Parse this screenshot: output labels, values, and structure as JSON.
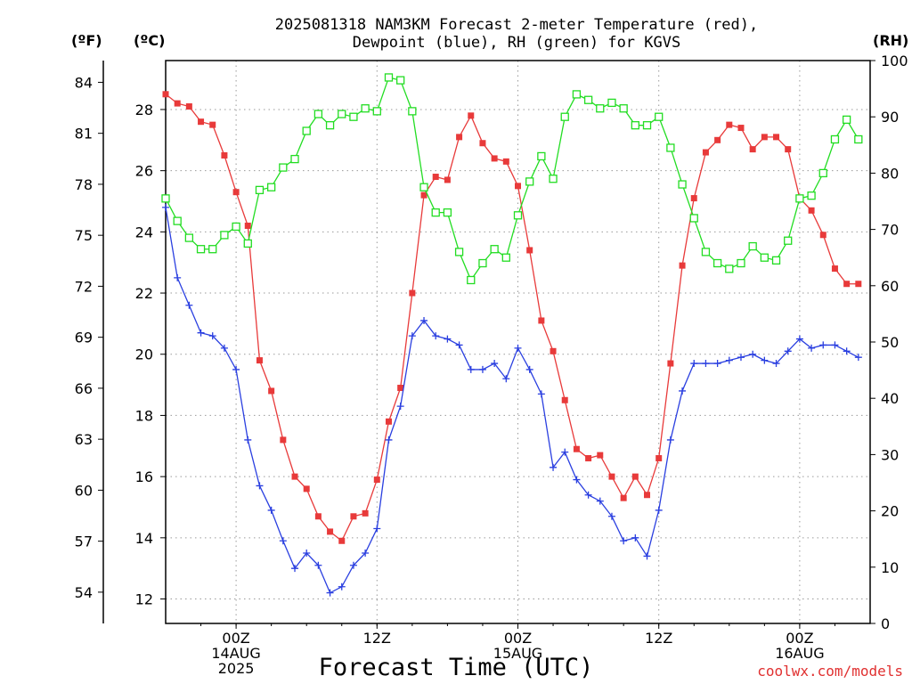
{
  "chart_data": {
    "type": "line",
    "title_lines": [
      "2025081318 NAM3KM Forecast 2-meter Temperature (red),",
      "Dewpoint (blue), RH (green) for KGVS"
    ],
    "xlabel": "Forecast Time (UTC)",
    "credit": "coolwx.com/models",
    "units": {
      "fahrenheit": "(ºF)",
      "celsius": "(ºC)",
      "rh": "(RH)"
    },
    "x_hours_from_start": {
      "range": [
        0,
        60
      ]
    },
    "x_ticks": [
      {
        "hour": 6,
        "lines": [
          "00Z",
          "14AUG",
          "2025"
        ]
      },
      {
        "hour": 18,
        "lines": [
          "12Z"
        ]
      },
      {
        "hour": 30,
        "lines": [
          "00Z",
          "15AUG"
        ]
      },
      {
        "hour": 42,
        "lines": [
          "12Z"
        ]
      },
      {
        "hour": 54,
        "lines": [
          "00Z",
          "16AUG"
        ]
      }
    ],
    "celsius_axis": {
      "range": [
        11.2,
        29.6
      ],
      "ticks": [
        12,
        14,
        16,
        18,
        20,
        22,
        24,
        26,
        28
      ]
    },
    "fahrenheit_ticks": [
      54,
      57,
      60,
      63,
      66,
      69,
      72,
      75,
      78,
      81,
      84
    ],
    "rh_axis": {
      "range": [
        0,
        100
      ],
      "ticks": [
        0,
        10,
        20,
        30,
        40,
        50,
        60,
        70,
        80,
        90,
        100
      ]
    },
    "colors": {
      "temperature": "#e83a3a",
      "dewpoint": "#2a3fe0",
      "rh": "#22dd22"
    },
    "series": [
      {
        "key": "temperature",
        "values": [
          28.5,
          28.2,
          28.1,
          27.6,
          27.5,
          26.5,
          25.3,
          24.2,
          19.8,
          18.8,
          17.2,
          16.0,
          15.6,
          14.7,
          14.2,
          13.9,
          14.7,
          14.8,
          15.9,
          17.8,
          18.9,
          22.0,
          25.2,
          25.8,
          25.7,
          27.1,
          27.8,
          26.9,
          26.4,
          26.3,
          25.5,
          23.4,
          21.1,
          20.1,
          18.5,
          16.9,
          16.6,
          16.7,
          16.0,
          15.3,
          16.0,
          15.4,
          16.6,
          19.7,
          22.9,
          25.1,
          26.6,
          27.0,
          27.5,
          27.4,
          26.7,
          27.1,
          27.1,
          26.7,
          25.1,
          24.7,
          23.9,
          22.8,
          22.3,
          22.3
        ],
        "marker": "square"
      },
      {
        "key": "dewpoint",
        "values": [
          24.8,
          22.5,
          21.6,
          20.7,
          20.6,
          20.2,
          19.5,
          17.2,
          15.7,
          14.9,
          13.9,
          13.0,
          13.5,
          13.1,
          12.2,
          12.4,
          13.1,
          13.5,
          14.3,
          17.2,
          18.3,
          20.6,
          21.1,
          20.6,
          20.5,
          20.3,
          19.5,
          19.5,
          19.7,
          19.2,
          20.2,
          19.5,
          18.7,
          16.3,
          16.8,
          15.9,
          15.4,
          15.2,
          14.7,
          13.9,
          14.0,
          13.4,
          14.9,
          17.2,
          18.8,
          19.7,
          19.7,
          19.7,
          19.8,
          19.9,
          20.0,
          19.8,
          19.7,
          20.1,
          20.5,
          20.2,
          20.3,
          20.3,
          20.1,
          19.9
        ],
        "marker": "plus"
      },
      {
        "key": "rh",
        "values": [
          75.5,
          71.5,
          68.5,
          66.5,
          66.5,
          69.0,
          70.5,
          67.5,
          77.0,
          77.5,
          81.0,
          82.5,
          87.5,
          90.5,
          88.5,
          90.5,
          90.0,
          91.5,
          91.0,
          97.0,
          96.5,
          91.0,
          77.5,
          73.0,
          73.0,
          66.0,
          61.0,
          64.0,
          66.5,
          65.0,
          72.5,
          78.5,
          83.0,
          79.0,
          90.0,
          94.0,
          93.0,
          91.5,
          92.5,
          91.5,
          88.5,
          88.5,
          90.0,
          84.5,
          78.0,
          72.0,
          66.0,
          64.0,
          63.0,
          64.0,
          67.0,
          65.0,
          64.5,
          68.0,
          75.5,
          76.0,
          80.0,
          86.0,
          89.5,
          86.0
        ]
      }
    ]
  }
}
